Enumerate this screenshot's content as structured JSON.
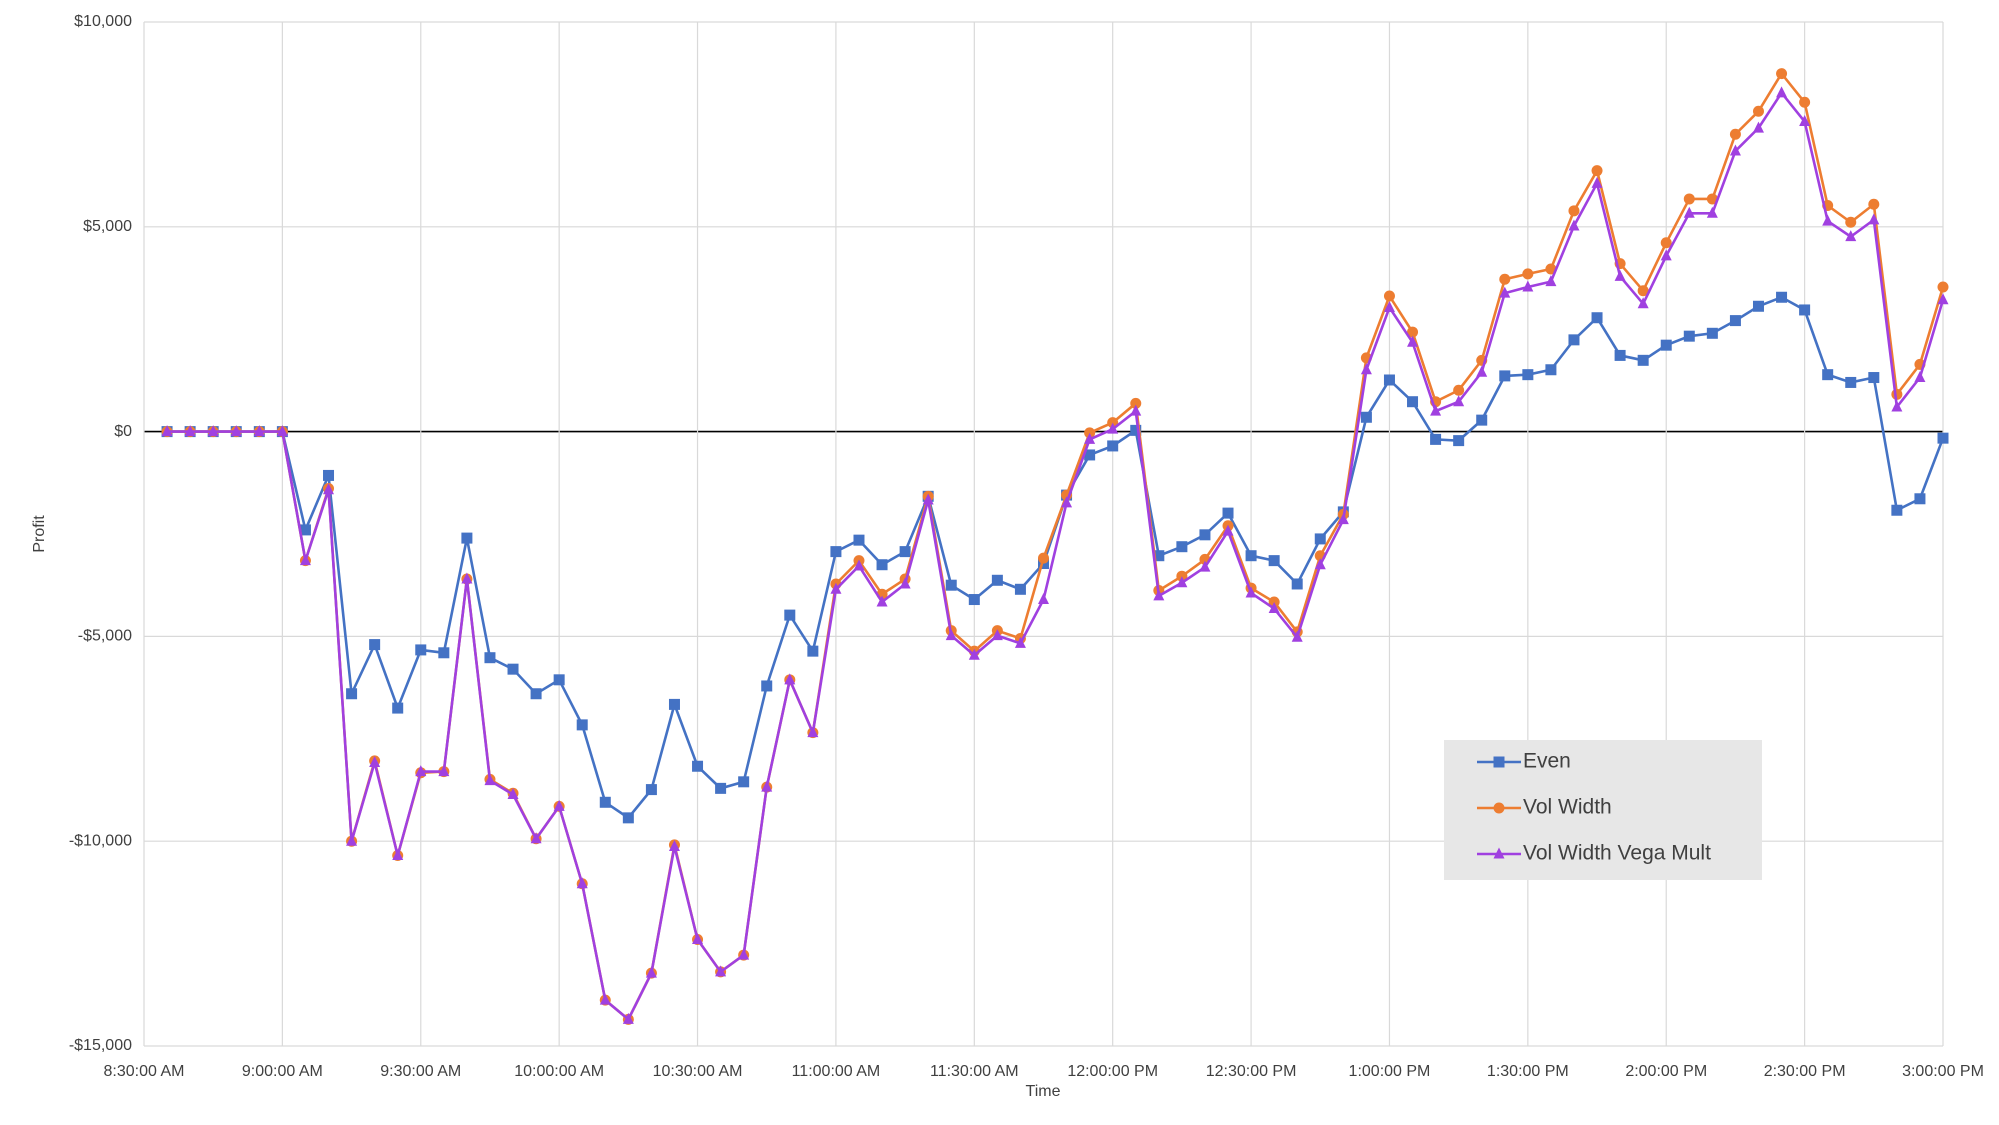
{
  "chart_data": {
    "type": "line",
    "x_label": "Time",
    "y_label": "Profit",
    "x": [
      515,
      520,
      525,
      530,
      535,
      540,
      545,
      550,
      555,
      560,
      565,
      570,
      575,
      580,
      585,
      590,
      595,
      600,
      605,
      610,
      615,
      620,
      625,
      630,
      635,
      640,
      645,
      650,
      655,
      660,
      665,
      670,
      675,
      680,
      685,
      690,
      695,
      700,
      705,
      710,
      715,
      720,
      725,
      730,
      735,
      740,
      745,
      750,
      755,
      760,
      765,
      770,
      775,
      780,
      785,
      790,
      795,
      800,
      805,
      810,
      815,
      820,
      825,
      830,
      835,
      840,
      845,
      850,
      855,
      860,
      865,
      870,
      875,
      880,
      885,
      890,
      895,
      900
    ],
    "series": [
      {
        "name": "Even",
        "color": "#4472c4",
        "marker": "square",
        "values": [
          0,
          0,
          0,
          0,
          0,
          0,
          -2400,
          -1070,
          -6400,
          -5200,
          -6750,
          -5330,
          -5400,
          -2600,
          -5520,
          -5800,
          -6400,
          -6060,
          -7160,
          -9050,
          -9430,
          -8740,
          -6660,
          -8170,
          -8710,
          -8550,
          -6210,
          -4480,
          -5360,
          -2930,
          -2650,
          -3250,
          -2930,
          -1580,
          -3750,
          -4100,
          -3630,
          -3850,
          -3220,
          -1550,
          -570,
          -350,
          30,
          -3030,
          -2810,
          -2520,
          -1990,
          -3030,
          -3150,
          -3720,
          -2620,
          -1960,
          350,
          1260,
          730,
          -190,
          -220,
          280,
          1360,
          1390,
          1510,
          2240,
          2780,
          1860,
          1740,
          2110,
          2330,
          2400,
          2710,
          3060,
          3280,
          2970,
          1390,
          1200,
          1320,
          -1920,
          -1640,
          -160
        ]
      },
      {
        "name": "Vol Width",
        "color": "#ed7d31",
        "marker": "circle",
        "values": [
          0,
          0,
          0,
          0,
          0,
          0,
          -3150,
          -1390,
          -10000,
          -8040,
          -10350,
          -8330,
          -8300,
          -3600,
          -8490,
          -8830,
          -9940,
          -9150,
          -11040,
          -13880,
          -14350,
          -13220,
          -10090,
          -12400,
          -13190,
          -12780,
          -8680,
          -6060,
          -7350,
          -3720,
          -3150,
          -3970,
          -3600,
          -1580,
          -4860,
          -5360,
          -4860,
          -5050,
          -3090,
          -1550,
          -30,
          220,
          690,
          -3880,
          -3530,
          -3120,
          -2300,
          -3820,
          -4160,
          -4890,
          -3030,
          -2020,
          1800,
          3310,
          2430,
          730,
          1010,
          1740,
          3720,
          3850,
          3970,
          5390,
          6370,
          4100,
          3440,
          4610,
          5680,
          5680,
          7260,
          7820,
          8740,
          8040,
          5520,
          5110,
          5550,
          910,
          1640,
          3530
        ]
      },
      {
        "name": "Vol Width Vega Mult",
        "color": "#a040e0",
        "marker": "triangle",
        "values": [
          0,
          0,
          0,
          0,
          0,
          0,
          -3150,
          -1420,
          -10000,
          -8080,
          -10350,
          -8300,
          -8300,
          -3600,
          -8520,
          -8860,
          -9940,
          -9150,
          -11040,
          -13880,
          -14350,
          -13220,
          -10130,
          -12400,
          -13190,
          -12780,
          -8680,
          -6060,
          -7350,
          -3850,
          -3280,
          -4160,
          -3720,
          -1670,
          -4980,
          -5460,
          -4980,
          -5170,
          -4100,
          -1740,
          -190,
          60,
          500,
          -4010,
          -3690,
          -3310,
          -2430,
          -3940,
          -4320,
          -5020,
          -3250,
          -2150,
          1510,
          3030,
          2180,
          500,
          730,
          1450,
          3380,
          3530,
          3660,
          5020,
          6060,
          3790,
          3120,
          4290,
          5330,
          5330,
          6850,
          7410,
          8270,
          7570,
          5140,
          4760,
          5170,
          600,
          1320,
          3220
        ]
      }
    ],
    "xlim": [
      510,
      900
    ],
    "xticks": [
      {
        "value": 510,
        "label": "8:30:00 AM"
      },
      {
        "value": 540,
        "label": "9:00:00 AM"
      },
      {
        "value": 570,
        "label": "9:30:00 AM"
      },
      {
        "value": 600,
        "label": "10:00:00 AM"
      },
      {
        "value": 630,
        "label": "10:30:00 AM"
      },
      {
        "value": 660,
        "label": "11:00:00 AM"
      },
      {
        "value": 690,
        "label": "11:30:00 AM"
      },
      {
        "value": 720,
        "label": "12:00:00 PM"
      },
      {
        "value": 750,
        "label": "12:30:00 PM"
      },
      {
        "value": 780,
        "label": "1:00:00 PM"
      },
      {
        "value": 810,
        "label": "1:30:00 PM"
      },
      {
        "value": 840,
        "label": "2:00:00 PM"
      },
      {
        "value": 870,
        "label": "2:30:00 PM"
      },
      {
        "value": 900,
        "label": "3:00:00 PM"
      }
    ],
    "ylim": [
      -15000,
      10000
    ],
    "yticks": [
      {
        "value": -15000,
        "label": "-$15,000"
      },
      {
        "value": -10000,
        "label": "-$10,000"
      },
      {
        "value": -5000,
        "label": "-$5,000"
      },
      {
        "value": 0,
        "label": "$0"
      },
      {
        "value": 5000,
        "label": "$5,000"
      },
      {
        "value": 10000,
        "label": "$10,000"
      }
    ],
    "grid": true,
    "legend": "lower-right"
  }
}
